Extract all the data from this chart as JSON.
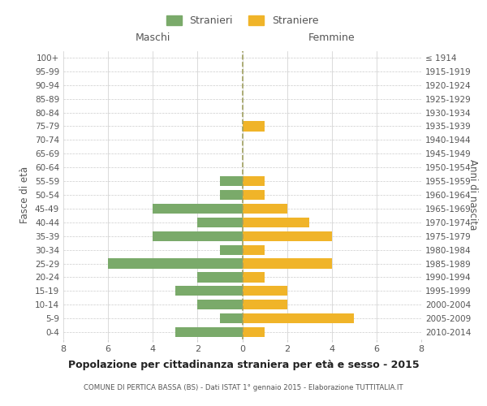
{
  "age_groups_bottom_to_top": [
    "0-4",
    "5-9",
    "10-14",
    "15-19",
    "20-24",
    "25-29",
    "30-34",
    "35-39",
    "40-44",
    "45-49",
    "50-54",
    "55-59",
    "60-64",
    "65-69",
    "70-74",
    "75-79",
    "80-84",
    "85-89",
    "90-94",
    "95-99",
    "100+"
  ],
  "birth_years_bottom_to_top": [
    "2010-2014",
    "2005-2009",
    "2000-2004",
    "1995-1999",
    "1990-1994",
    "1985-1989",
    "1980-1984",
    "1975-1979",
    "1970-1974",
    "1965-1969",
    "1960-1964",
    "1955-1959",
    "1950-1954",
    "1945-1949",
    "1940-1944",
    "1935-1939",
    "1930-1934",
    "1925-1929",
    "1920-1924",
    "1915-1919",
    "≤ 1914"
  ],
  "males_bottom_to_top": [
    3,
    1,
    2,
    3,
    2,
    6,
    1,
    4,
    2,
    4,
    1,
    1,
    0,
    0,
    0,
    0,
    0,
    0,
    0,
    0,
    0
  ],
  "females_bottom_to_top": [
    1,
    5,
    2,
    2,
    1,
    4,
    1,
    4,
    3,
    2,
    1,
    1,
    0,
    0,
    0,
    1,
    0,
    0,
    0,
    0,
    0
  ],
  "male_color": "#7aaa6a",
  "female_color": "#f0b429",
  "bar_height": 0.72,
  "xlim": [
    -8,
    8
  ],
  "xticks": [
    -8,
    -6,
    -4,
    -2,
    0,
    2,
    4,
    6,
    8
  ],
  "xtick_labels": [
    "8",
    "6",
    "4",
    "2",
    "0",
    "2",
    "4",
    "6",
    "8"
  ],
  "title": "Popolazione per cittadinanza straniera per età e sesso - 2015",
  "subtitle": "COMUNE DI PERTICA BASSA (BS) - Dati ISTAT 1° gennaio 2015 - Elaborazione TUTTITALIA.IT",
  "ylabel_left": "Fasce di età",
  "ylabel_right": "Anni di nascita",
  "label_maschi": "Maschi",
  "label_femmine": "Femmine",
  "legend_stranieri": "Stranieri",
  "legend_straniere": "Straniere",
  "bg_color": "#ffffff",
  "grid_color": "#cccccc",
  "text_color": "#555555",
  "dashed_line_color": "#a0a060"
}
